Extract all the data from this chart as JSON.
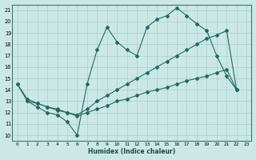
{
  "bg_color": "#cce8e4",
  "grid_color": "#aacfcc",
  "line_color": "#1e6b64",
  "xlabel": "Humidex (Indice chaleur)",
  "xlim": [
    -0.5,
    23.5
  ],
  "ylim": [
    9.5,
    21.5
  ],
  "xticks": [
    0,
    1,
    2,
    3,
    4,
    5,
    6,
    7,
    8,
    9,
    10,
    11,
    12,
    13,
    14,
    15,
    16,
    17,
    18,
    19,
    20,
    21,
    22,
    23
  ],
  "yticks": [
    10,
    11,
    12,
    13,
    14,
    15,
    16,
    17,
    18,
    19,
    20,
    21
  ],
  "line1_x": [
    0,
    1,
    2,
    3,
    4,
    5,
    6,
    7,
    8,
    9,
    10,
    11,
    12,
    13,
    14,
    15,
    16,
    17,
    18,
    19,
    20,
    21,
    22
  ],
  "line1_y": [
    14.5,
    13.0,
    12.5,
    12.0,
    11.8,
    11.2,
    10.0,
    14.5,
    17.5,
    19.5,
    18.2,
    17.5,
    17.0,
    19.5,
    20.2,
    20.5,
    21.2,
    20.5,
    19.8,
    19.2,
    17.0,
    15.2,
    14.0
  ],
  "line2_x": [
    0,
    1,
    2,
    3,
    4,
    5,
    6,
    7,
    8,
    9,
    10,
    11,
    12,
    13,
    14,
    15,
    16,
    17,
    18,
    19,
    20,
    21,
    22
  ],
  "line2_y": [
    14.5,
    13.2,
    12.8,
    12.5,
    12.3,
    12.0,
    11.8,
    12.3,
    13.0,
    13.5,
    14.0,
    14.5,
    15.0,
    15.5,
    16.0,
    16.5,
    17.0,
    17.5,
    18.0,
    18.5,
    18.8,
    19.2,
    14.0
  ],
  "line3_x": [
    1,
    2,
    3,
    4,
    5,
    6,
    7,
    8,
    9,
    10,
    11,
    12,
    13,
    14,
    15,
    16,
    17,
    18,
    19,
    20,
    21,
    22
  ],
  "line3_y": [
    13.0,
    12.8,
    12.5,
    12.2,
    12.0,
    11.7,
    12.0,
    12.3,
    12.6,
    13.0,
    13.2,
    13.5,
    13.8,
    14.0,
    14.2,
    14.5,
    14.8,
    15.0,
    15.2,
    15.5,
    15.8,
    14.0
  ]
}
